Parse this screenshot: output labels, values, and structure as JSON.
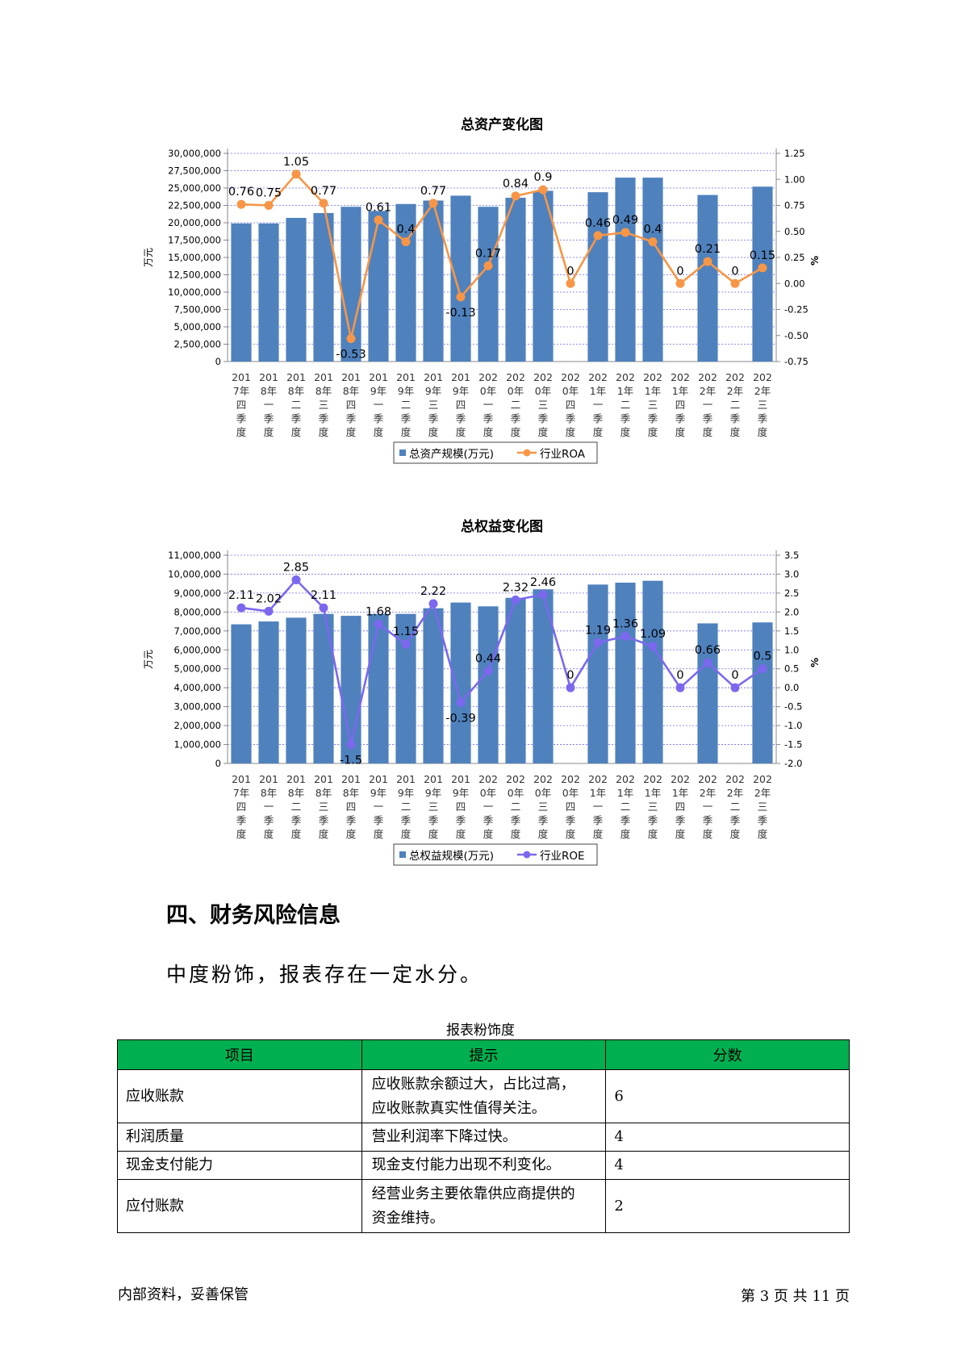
{
  "chart_data": [
    {
      "type": "bar+line",
      "title": "总资产变化图",
      "ylabel_left": "万元",
      "ylabel_right": "%",
      "categories": [
        [
          "201",
          "7年",
          "四",
          "季",
          "度"
        ],
        [
          "201",
          "8年",
          "一",
          "季",
          "度"
        ],
        [
          "201",
          "8年",
          "二",
          "季",
          "度"
        ],
        [
          "201",
          "8年",
          "三",
          "季",
          "度"
        ],
        [
          "201",
          "8年",
          "四",
          "季",
          "度"
        ],
        [
          "201",
          "9年",
          "一",
          "季",
          "度"
        ],
        [
          "201",
          "9年",
          "二",
          "季",
          "度"
        ],
        [
          "201",
          "9年",
          "三",
          "季",
          "度"
        ],
        [
          "201",
          "9年",
          "四",
          "季",
          "度"
        ],
        [
          "202",
          "0年",
          "一",
          "季",
          "度"
        ],
        [
          "202",
          "0年",
          "二",
          "季",
          "度"
        ],
        [
          "202",
          "0年",
          "三",
          "季",
          "度"
        ],
        [
          "202",
          "0年",
          "四",
          "季",
          "度"
        ],
        [
          "202",
          "1年",
          "一",
          "季",
          "度"
        ],
        [
          "202",
          "1年",
          "二",
          "季",
          "度"
        ],
        [
          "202",
          "1年",
          "三",
          "季",
          "度"
        ],
        [
          "202",
          "1年",
          "四",
          "季",
          "度"
        ],
        [
          "202",
          "2年",
          "一",
          "季",
          "度"
        ],
        [
          "202",
          "2年",
          "二",
          "季",
          "度"
        ],
        [
          "202",
          "2年",
          "三",
          "季",
          "度"
        ]
      ],
      "bar_series": {
        "name": "总资产规模(万元)",
        "color": "#4f81bd",
        "values": [
          19900000,
          19900000,
          20700000,
          21400000,
          22300000,
          21700000,
          22700000,
          23200000,
          23900000,
          22300000,
          23600000,
          24600000,
          null,
          24400000,
          26500000,
          26500000,
          null,
          24000000,
          null,
          25200000
        ]
      },
      "line_series": {
        "name": "行业ROA",
        "color": "#f79646",
        "values": [
          0.76,
          0.75,
          1.05,
          0.77,
          -0.53,
          0.61,
          0.4,
          0.77,
          -0.13,
          0.17,
          0.84,
          0.9,
          0,
          0.46,
          0.49,
          0.4,
          0,
          0.21,
          0,
          0.15
        ],
        "labels": [
          "0.76",
          "0.75",
          "1.05",
          "0.77",
          "-0.53",
          "0.61",
          "0.4",
          "0.77",
          "-0.13",
          "0.17",
          "0.84",
          "0.9",
          "0",
          "0.46",
          "0.49",
          "0.4",
          "0",
          "0.21",
          "0",
          "0.15"
        ]
      },
      "left_axis": {
        "min": 0,
        "max": 30000000,
        "step": 2500000,
        "ticks": [
          "0",
          "2,500,000",
          "5,000,000",
          "7,500,000",
          "10,000,000",
          "12,500,000",
          "15,000,000",
          "17,500,000",
          "20,000,000",
          "22,500,000",
          "25,000,000",
          "27,500,000",
          "30,000,000"
        ]
      },
      "right_axis": {
        "min": -0.75,
        "max": 1.25,
        "step": 0.25,
        "ticks": [
          "-0.75",
          "-0.50",
          "-0.25",
          "0.00",
          "0.25",
          "0.50",
          "0.75",
          "1.00",
          "1.25"
        ]
      },
      "grid": true,
      "legend_position": "bottom"
    },
    {
      "type": "bar+line",
      "title": "总权益变化图",
      "ylabel_left": "万元",
      "ylabel_right": "%",
      "categories": [
        [
          "201",
          "7年",
          "四",
          "季",
          "度"
        ],
        [
          "201",
          "8年",
          "一",
          "季",
          "度"
        ],
        [
          "201",
          "8年",
          "二",
          "季",
          "度"
        ],
        [
          "201",
          "8年",
          "三",
          "季",
          "度"
        ],
        [
          "201",
          "8年",
          "四",
          "季",
          "度"
        ],
        [
          "201",
          "9年",
          "一",
          "季",
          "度"
        ],
        [
          "201",
          "9年",
          "二",
          "季",
          "度"
        ],
        [
          "201",
          "9年",
          "三",
          "季",
          "度"
        ],
        [
          "201",
          "9年",
          "四",
          "季",
          "度"
        ],
        [
          "202",
          "0年",
          "一",
          "季",
          "度"
        ],
        [
          "202",
          "0年",
          "二",
          "季",
          "度"
        ],
        [
          "202",
          "0年",
          "三",
          "季",
          "度"
        ],
        [
          "202",
          "0年",
          "四",
          "季",
          "度"
        ],
        [
          "202",
          "1年",
          "一",
          "季",
          "度"
        ],
        [
          "202",
          "1年",
          "二",
          "季",
          "度"
        ],
        [
          "202",
          "1年",
          "三",
          "季",
          "度"
        ],
        [
          "202",
          "1年",
          "四",
          "季",
          "度"
        ],
        [
          "202",
          "2年",
          "一",
          "季",
          "度"
        ],
        [
          "202",
          "2年",
          "二",
          "季",
          "度"
        ],
        [
          "202",
          "2年",
          "三",
          "季",
          "度"
        ]
      ],
      "bar_series": {
        "name": "总权益规模(万元)",
        "color": "#4f81bd",
        "values": [
          7350000,
          7500000,
          7700000,
          7900000,
          7800000,
          7900000,
          7900000,
          8200000,
          8500000,
          8300000,
          8750000,
          9200000,
          null,
          9450000,
          9550000,
          9650000,
          null,
          7400000,
          null,
          7450000
        ]
      },
      "line_series": {
        "name": "行业ROE",
        "color": "#7b68ee",
        "values": [
          2.11,
          2.02,
          2.85,
          2.11,
          -1.5,
          1.68,
          1.15,
          2.22,
          -0.39,
          0.44,
          2.32,
          2.46,
          0,
          1.19,
          1.36,
          1.09,
          0,
          0.66,
          0,
          0.5
        ],
        "labels": [
          "2.11",
          "2.02",
          "2.85",
          "2.11",
          "-1.5",
          "1.68",
          "1.15",
          "2.22",
          "-0.39",
          "0.44",
          "2.32",
          "2.46",
          "0",
          "1.19",
          "1.36",
          "1.09",
          "0",
          "0.66",
          "0",
          "0.5"
        ]
      },
      "left_axis": {
        "min": 0,
        "max": 11000000,
        "step": 1000000,
        "ticks": [
          "0",
          "1,000,000",
          "2,000,000",
          "3,000,000",
          "4,000,000",
          "5,000,000",
          "6,000,000",
          "7,000,000",
          "8,000,000",
          "9,000,000",
          "10,000,000",
          "11,000,000"
        ]
      },
      "right_axis": {
        "min": -2.0,
        "max": 3.5,
        "step": 0.5,
        "ticks": [
          "-2.0",
          "-1.5",
          "-1.0",
          "-0.5",
          "0.0",
          "0.5",
          "1.0",
          "1.5",
          "2.0",
          "2.5",
          "3.0",
          "3.5"
        ]
      },
      "grid": true,
      "legend_position": "bottom"
    }
  ],
  "section": {
    "heading": "四、财务风险信息",
    "text": "中度粉饰，报表存在一定水分。"
  },
  "table": {
    "caption": "报表粉饰度",
    "headers": [
      "项目",
      "提示",
      "分数"
    ],
    "header_color": "#00b050",
    "rows": [
      {
        "item": "应收账款",
        "hint_line1": "应收账款余额过大，占比过高，",
        "hint_line2": "应收账款真实性值得关注。",
        "score": "6"
      },
      {
        "item": "利润质量",
        "hint_line1": "营业利润率下降过快。",
        "hint_line2": "",
        "score": "4"
      },
      {
        "item": "现金支付能力",
        "hint_line1": "现金支付能力出现不利变化。",
        "hint_line2": "",
        "score": "4"
      },
      {
        "item": "应付账款",
        "hint_line1": "经营业务主要依靠供应商提供的",
        "hint_line2": "资金维持。",
        "score": "2"
      }
    ]
  },
  "footer": {
    "left": "内部资料，妥善保管",
    "right": "第 3 页  共 11 页"
  }
}
